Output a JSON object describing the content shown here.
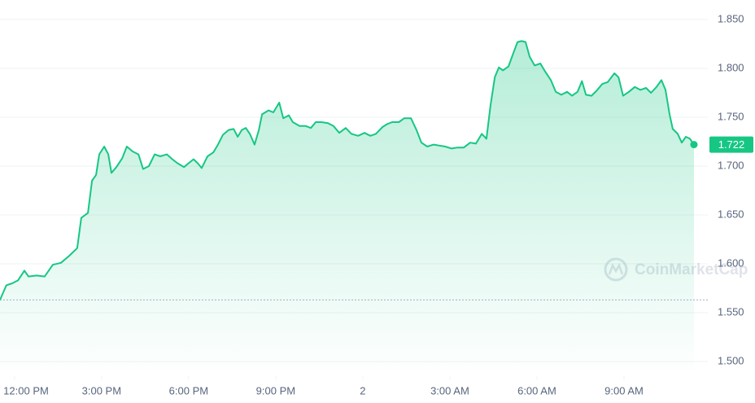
{
  "chart_data": {
    "type": "area",
    "watermark": "CoinMarketCap",
    "current_price": 1.722,
    "baseline": 1.563,
    "color": "#16c784",
    "grid": true,
    "xlim": [
      11.5,
      36
    ],
    "ylim": [
      1.485,
      1.87
    ],
    "xticks": [
      {
        "value": 12,
        "label": "12:00 PM"
      },
      {
        "value": 15,
        "label": "3:00 PM"
      },
      {
        "value": 18,
        "label": "6:00 PM"
      },
      {
        "value": 21,
        "label": "9:00 PM"
      },
      {
        "value": 24,
        "label": "2"
      },
      {
        "value": 27,
        "label": "3:00 AM"
      },
      {
        "value": 30,
        "label": "6:00 AM"
      },
      {
        "value": 33,
        "label": "9:00 AM"
      }
    ],
    "yticks": [
      {
        "value": 1.5,
        "label": "1.500"
      },
      {
        "value": 1.55,
        "label": "1.550"
      },
      {
        "value": 1.6,
        "label": "1.600"
      },
      {
        "value": 1.65,
        "label": "1.650"
      },
      {
        "value": 1.7,
        "label": "1.700"
      },
      {
        "value": 1.75,
        "label": "1.750"
      },
      {
        "value": 1.8,
        "label": "1.800"
      },
      {
        "value": 1.85,
        "label": "1.850"
      }
    ],
    "x": [
      11.5,
      11.72,
      11.92,
      12.12,
      12.34,
      12.48,
      12.76,
      13.04,
      13.32,
      13.6,
      13.88,
      14.16,
      14.3,
      14.53,
      14.67,
      14.81,
      14.92,
      15.09,
      15.23,
      15.34,
      15.51,
      15.71,
      15.87,
      16.07,
      16.27,
      16.43,
      16.63,
      16.83,
      17.02,
      17.25,
      17.44,
      17.61,
      17.84,
      18.0,
      18.17,
      18.31,
      18.45,
      18.65,
      18.85,
      19.01,
      19.18,
      19.38,
      19.55,
      19.69,
      19.83,
      19.97,
      20.11,
      20.27,
      20.42,
      20.53,
      20.75,
      20.92,
      21.12,
      21.26,
      21.45,
      21.59,
      21.82,
      22.04,
      22.21,
      22.38,
      22.57,
      22.8,
      22.99,
      23.19,
      23.41,
      23.61,
      23.84,
      24.06,
      24.26,
      24.45,
      24.68,
      24.84,
      25.01,
      25.24,
      25.43,
      25.66,
      25.85,
      26.02,
      26.22,
      26.44,
      26.64,
      26.84,
      27.06,
      27.26,
      27.48,
      27.7,
      27.9,
      28.1,
      28.26,
      28.4,
      28.55,
      28.69,
      28.83,
      29.02,
      29.19,
      29.33,
      29.47,
      29.61,
      29.75,
      29.92,
      30.12,
      30.28,
      30.48,
      30.65,
      30.84,
      31.04,
      31.21,
      31.4,
      31.55,
      31.69,
      31.88,
      32.05,
      32.25,
      32.44,
      32.67,
      32.81,
      32.97,
      33.17,
      33.37,
      33.56,
      33.76,
      33.93,
      34.12,
      34.29,
      34.43,
      34.57,
      34.68,
      34.85,
      34.99,
      35.13,
      35.27,
      35.41
    ],
    "series": [
      {
        "color": "#16c784",
        "values": [
          1.563,
          1.578,
          1.58,
          1.583,
          1.593,
          1.587,
          1.588,
          1.587,
          1.599,
          1.601,
          1.608,
          1.616,
          1.647,
          1.652,
          1.685,
          1.691,
          1.712,
          1.72,
          1.712,
          1.693,
          1.699,
          1.708,
          1.72,
          1.715,
          1.712,
          1.697,
          1.7,
          1.712,
          1.71,
          1.712,
          1.707,
          1.703,
          1.699,
          1.703,
          1.707,
          1.703,
          1.698,
          1.71,
          1.714,
          1.722,
          1.732,
          1.737,
          1.738,
          1.73,
          1.737,
          1.739,
          1.733,
          1.722,
          1.737,
          1.753,
          1.757,
          1.755,
          1.765,
          1.749,
          1.752,
          1.745,
          1.741,
          1.741,
          1.739,
          1.745,
          1.745,
          1.744,
          1.741,
          1.734,
          1.739,
          1.733,
          1.731,
          1.734,
          1.731,
          1.733,
          1.74,
          1.743,
          1.745,
          1.745,
          1.749,
          1.749,
          1.737,
          1.724,
          1.72,
          1.722,
          1.721,
          1.72,
          1.718,
          1.719,
          1.719,
          1.724,
          1.723,
          1.733,
          1.728,
          1.762,
          1.791,
          1.801,
          1.798,
          1.802,
          1.816,
          1.827,
          1.828,
          1.827,
          1.812,
          1.803,
          1.805,
          1.797,
          1.788,
          1.776,
          1.773,
          1.776,
          1.772,
          1.776,
          1.787,
          1.773,
          1.772,
          1.777,
          1.784,
          1.786,
          1.795,
          1.791,
          1.772,
          1.776,
          1.781,
          1.778,
          1.78,
          1.775,
          1.781,
          1.788,
          1.778,
          1.753,
          1.738,
          1.733,
          1.724,
          1.73,
          1.728,
          1.722
        ]
      }
    ]
  }
}
